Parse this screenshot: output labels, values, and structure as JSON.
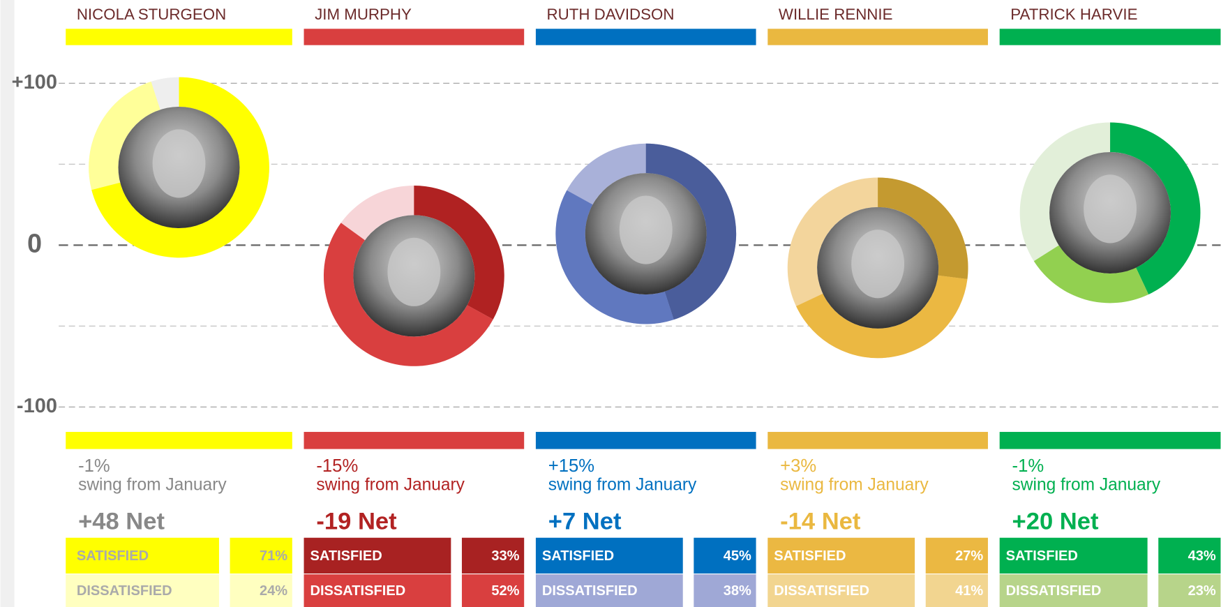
{
  "chart_data": {
    "type": "donut",
    "ylim": [
      -100,
      100
    ],
    "yticks": [
      {
        "value": 100,
        "label": "+100"
      },
      0,
      {
        "value": -100,
        "label": "-100"
      }
    ],
    "minor_yticks": [
      50,
      -50
    ],
    "grid": true,
    "leaders": [
      {
        "name": "NICOLA STURGEON",
        "color": "#ffff00",
        "text_color": "#888888",
        "ring_rest_color": "#eeeeee",
        "swing": -1,
        "swing_label": "-1%",
        "swing_text": "swing from January",
        "net": 48,
        "net_label": "+48 Net",
        "satisfied": {
          "label": "SATISFIED",
          "value": 71,
          "value_label": "71%",
          "color": "#ffff00",
          "ring_color": "#ffff00",
          "text_color": "#aaaaaa"
        },
        "dissatisfied": {
          "label": "DISSATISFIED",
          "value": 24,
          "value_label": "24%",
          "color": "#ffffc0",
          "ring_color": "#ffff99",
          "text_color": "#aaaaaa"
        }
      },
      {
        "name": "JIM MURPHY",
        "color": "#d93f3f",
        "text_color": "#b22222",
        "ring_rest_color": "#f7d5d8",
        "swing": -15,
        "swing_label": "-15%",
        "swing_text": "swing from January",
        "net": -19,
        "net_label": "-19 Net",
        "satisfied": {
          "label": "SATISFIED",
          "value": 33,
          "value_label": "33%",
          "color": "#a82222",
          "ring_color": "#b02222",
          "text_color": "#ffffff"
        },
        "dissatisfied": {
          "label": "DISSATISFIED",
          "value": 52,
          "value_label": "52%",
          "color": "#d93f3f",
          "ring_color": "#d93f3f",
          "text_color": "#ffffff"
        }
      },
      {
        "name": "RUTH DAVIDSON",
        "color": "#0070c0",
        "text_color": "#0070c0",
        "ring_rest_color": "#a9b1d9",
        "swing": 15,
        "swing_label": "+15%",
        "swing_text": "swing from January",
        "net": 7,
        "net_label": "+7 Net",
        "satisfied": {
          "label": "SATISFIED",
          "value": 45,
          "value_label": "45%",
          "color": "#0070c0",
          "ring_color": "#4a5d9b",
          "text_color": "#ffffff"
        },
        "dissatisfied": {
          "label": "DISSATISFIED",
          "value": 38,
          "value_label": "38%",
          "color": "#9fa8d6",
          "ring_color": "#6078bf",
          "text_color": "#ffffff"
        }
      },
      {
        "name": "WILLIE RENNIE",
        "color": "#eab840",
        "text_color": "#eab840",
        "ring_rest_color": "#f3d59c",
        "swing": 3,
        "swing_label": "+3%",
        "swing_text": "swing from January",
        "net": -14,
        "net_label": "-14 Net",
        "satisfied": {
          "label": "SATISFIED",
          "value": 27,
          "value_label": "27%",
          "color": "#ebb842",
          "ring_color": "#c49a30",
          "text_color": "#ffffff"
        },
        "dissatisfied": {
          "label": "DISSATISFIED",
          "value": 41,
          "value_label": "41%",
          "color": "#f2d590",
          "ring_color": "#ebb842",
          "text_color": "#ffffff"
        }
      },
      {
        "name": "PATRICK HARVIE",
        "color": "#00b050",
        "text_color": "#00b050",
        "ring_rest_color": "#e2efd9",
        "swing": -1,
        "swing_label": "-1%",
        "swing_text": "swing from January",
        "net": 20,
        "net_label": "+20 Net",
        "satisfied": {
          "label": "SATISFIED",
          "value": 43,
          "value_label": "43%",
          "color": "#00b050",
          "ring_color": "#00b050",
          "text_color": "#ffffff"
        },
        "dissatisfied": {
          "label": "DISSATISFIED",
          "value": 23,
          "value_label": "23%",
          "color": "#b7d48a",
          "ring_color": "#92d050",
          "text_color": "#ffffff"
        }
      }
    ]
  }
}
